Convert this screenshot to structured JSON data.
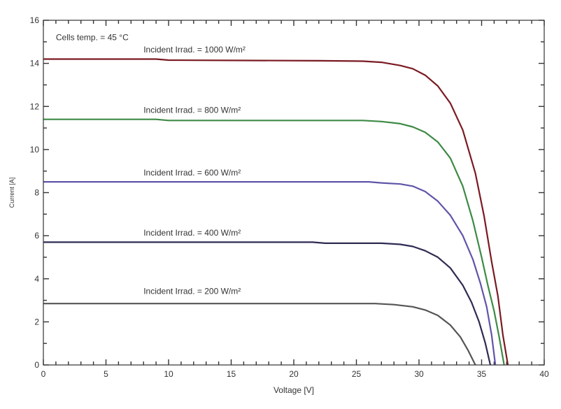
{
  "chart_data": {
    "type": "line",
    "title": "",
    "xlabel": "Voltage  [V]",
    "ylabel": "Current      [A]",
    "xlim": [
      0,
      40
    ],
    "ylim": [
      0,
      16
    ],
    "x_ticks": [
      0,
      5,
      10,
      15,
      20,
      25,
      30,
      35,
      40
    ],
    "y_ticks": [
      0,
      2,
      4,
      6,
      8,
      10,
      12,
      14,
      16
    ],
    "grid": false,
    "annotations": [
      {
        "text": "Cells temp. = 45 °C",
        "x": 1.0,
        "y": 15.2
      }
    ],
    "series": [
      {
        "name": "",
        "label": "Incident Irrad. = 1000 W/m²",
        "label_pos": [
          8.0,
          14.5
        ],
        "color": "#7a1a22",
        "x": [
          0,
          9,
          10,
          22,
          25.5,
          27,
          28.5,
          29.5,
          30.5,
          31.5,
          32.5,
          33.5,
          34.5,
          35.2,
          35.8,
          36.3,
          36.7,
          37.1
        ],
        "y": [
          14.2,
          14.2,
          14.15,
          14.12,
          14.1,
          14.05,
          13.9,
          13.75,
          13.45,
          12.95,
          12.15,
          10.9,
          8.9,
          6.9,
          4.8,
          3.2,
          1.4,
          0
        ]
      },
      {
        "name": "",
        "label": "Incident Irrad. = 800 W/m²",
        "label_pos": [
          8.0,
          11.7
        ],
        "color": "#3d8a45",
        "x": [
          0,
          9,
          10,
          25.5,
          27,
          28.5,
          29.5,
          30.5,
          31.5,
          32.5,
          33.5,
          34.3,
          35.0,
          35.5,
          36.0,
          36.4,
          36.8
        ],
        "y": [
          11.4,
          11.4,
          11.35,
          11.35,
          11.3,
          11.2,
          11.05,
          10.8,
          10.35,
          9.6,
          8.3,
          6.7,
          5.0,
          3.7,
          2.5,
          1.3,
          0
        ]
      },
      {
        "name": "",
        "label": "Incident Irrad. = 600 W/m²",
        "label_pos": [
          8.0,
          8.8
        ],
        "color": "#5f55a8",
        "x": [
          0,
          26,
          27,
          28.5,
          29.5,
          30.5,
          31.5,
          32.5,
          33.5,
          34.3,
          34.9,
          35.4,
          35.8,
          36.1
        ],
        "y": [
          8.5,
          8.5,
          8.45,
          8.4,
          8.3,
          8.05,
          7.6,
          6.95,
          6.0,
          4.9,
          3.8,
          2.7,
          1.4,
          0
        ]
      },
      {
        "name": "",
        "label": "Incident Irrad. = 400 W/m²",
        "label_pos": [
          8.0,
          6.0
        ],
        "color": "#2e2b52",
        "x": [
          0,
          21.5,
          22.5,
          27,
          28.5,
          29.5,
          30.5,
          31.5,
          32.5,
          33.5,
          34.2,
          34.8,
          35.3,
          35.7
        ],
        "y": [
          5.7,
          5.7,
          5.65,
          5.65,
          5.6,
          5.5,
          5.3,
          5.0,
          4.5,
          3.7,
          2.9,
          2.0,
          1.0,
          0
        ]
      },
      {
        "name": "",
        "label": "Incident Irrad. = 200 W/m²",
        "label_pos": [
          8.0,
          3.3
        ],
        "color": "#555555",
        "x": [
          0,
          26.5,
          28,
          29.5,
          30.5,
          31.5,
          32.5,
          33.3,
          33.9,
          34.5
        ],
        "y": [
          2.85,
          2.85,
          2.8,
          2.7,
          2.55,
          2.3,
          1.85,
          1.3,
          0.7,
          0
        ]
      }
    ]
  }
}
